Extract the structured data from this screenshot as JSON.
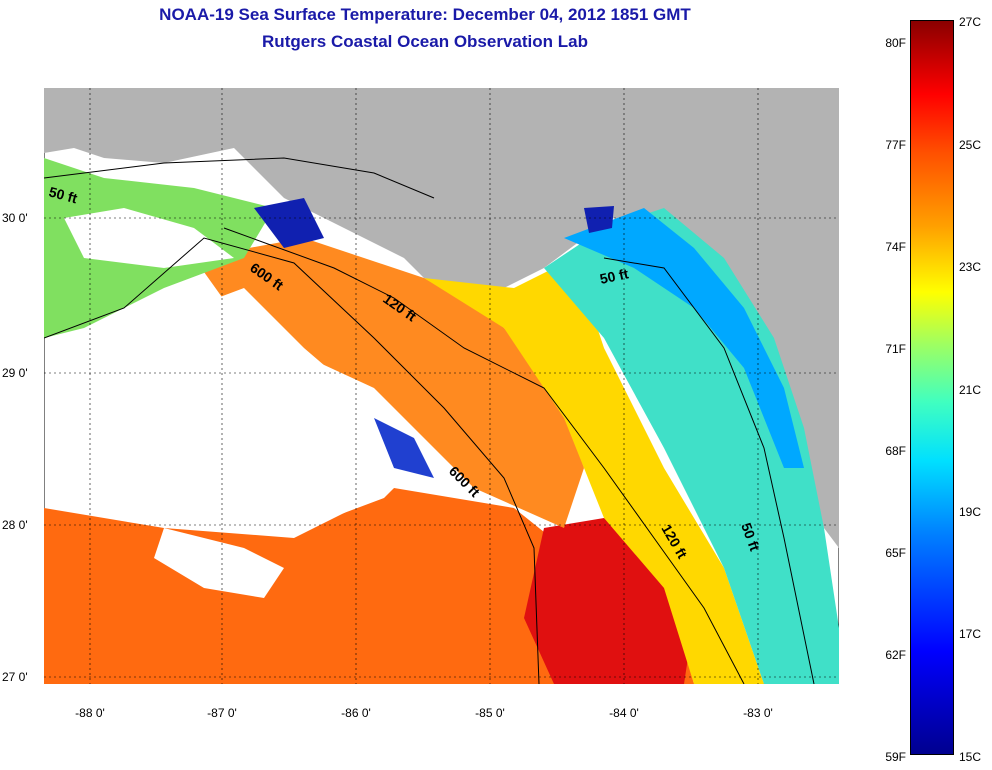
{
  "title": {
    "line1": "NOAA-19 Sea Surface Temperature:  December 04, 2012 1851 GMT",
    "line2": "Rutgers Coastal Ocean Observation Lab"
  },
  "map": {
    "lat_ticks": [
      "30 0'",
      "29 0'",
      "28 0'",
      "27 0'"
    ],
    "lon_ticks": [
      "-88 0'",
      "-87 0'",
      "-86 0'",
      "-85 0'",
      "-84 0'",
      "-83 0'"
    ],
    "contour_labels": [
      "50 ft",
      "600 ft",
      "120 ft",
      "50 ft",
      "600 ft",
      "120 ft",
      "50 ft"
    ],
    "colors": {
      "land": "#b3b3b3",
      "cloud": "#ffffff",
      "warm": "#ff6a10",
      "hot": "#e01010",
      "mid": "#ffd800",
      "cool": "#40e0c8",
      "cold": "#00a8ff",
      "deep": "#1020b0"
    }
  },
  "colorbar": {
    "fahrenheit": [
      "80F",
      "77F",
      "74F",
      "71F",
      "68F",
      "65F",
      "62F",
      "59F"
    ],
    "celsius": [
      "27C",
      "25C",
      "23C",
      "21C",
      "19C",
      "17C",
      "15C"
    ]
  }
}
